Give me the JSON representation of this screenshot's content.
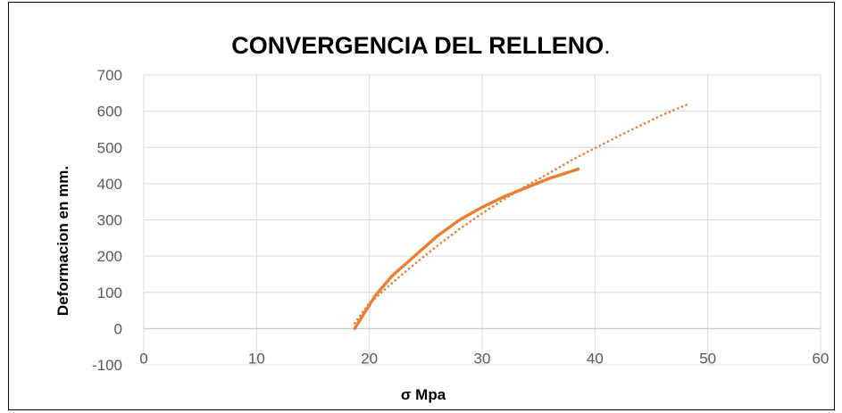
{
  "chart_data": {
    "type": "line",
    "title": "CONVERGENCIA DEL RELLENO",
    "title_suffix": ".",
    "xlabel": "σ Mpa",
    "ylabel": "Deformacion en mm.",
    "xlim": [
      0,
      60
    ],
    "ylim": [
      -100,
      700
    ],
    "xticks": [
      "0",
      "10",
      "20",
      "30",
      "40",
      "50",
      "60"
    ],
    "yticks": [
      "-100",
      "0",
      "100",
      "200",
      "300",
      "400",
      "500",
      "600",
      "700"
    ],
    "grid": true,
    "colors": {
      "series": "#ED7D31",
      "grid": "#D9D9D9",
      "axis": "#BFBFBF"
    },
    "series": [
      {
        "style": "solid",
        "x": [
          18.7,
          19.5,
          20.5,
          22,
          24,
          26,
          28,
          30,
          32,
          34,
          36,
          38.5
        ],
        "y": [
          0,
          40,
          90,
          145,
          200,
          255,
          300,
          335,
          365,
          390,
          415,
          440
        ]
      },
      {
        "style": "dotted",
        "trendline": true,
        "x": [
          18.7,
          20,
          22,
          24,
          26,
          28,
          30,
          32,
          34,
          36,
          38,
          40,
          42,
          44,
          46,
          48.3
        ],
        "y": [
          15,
          70,
          125,
          178,
          228,
          275,
          318,
          358,
          395,
          430,
          466,
          498,
          530,
          560,
          590,
          620
        ]
      }
    ]
  }
}
